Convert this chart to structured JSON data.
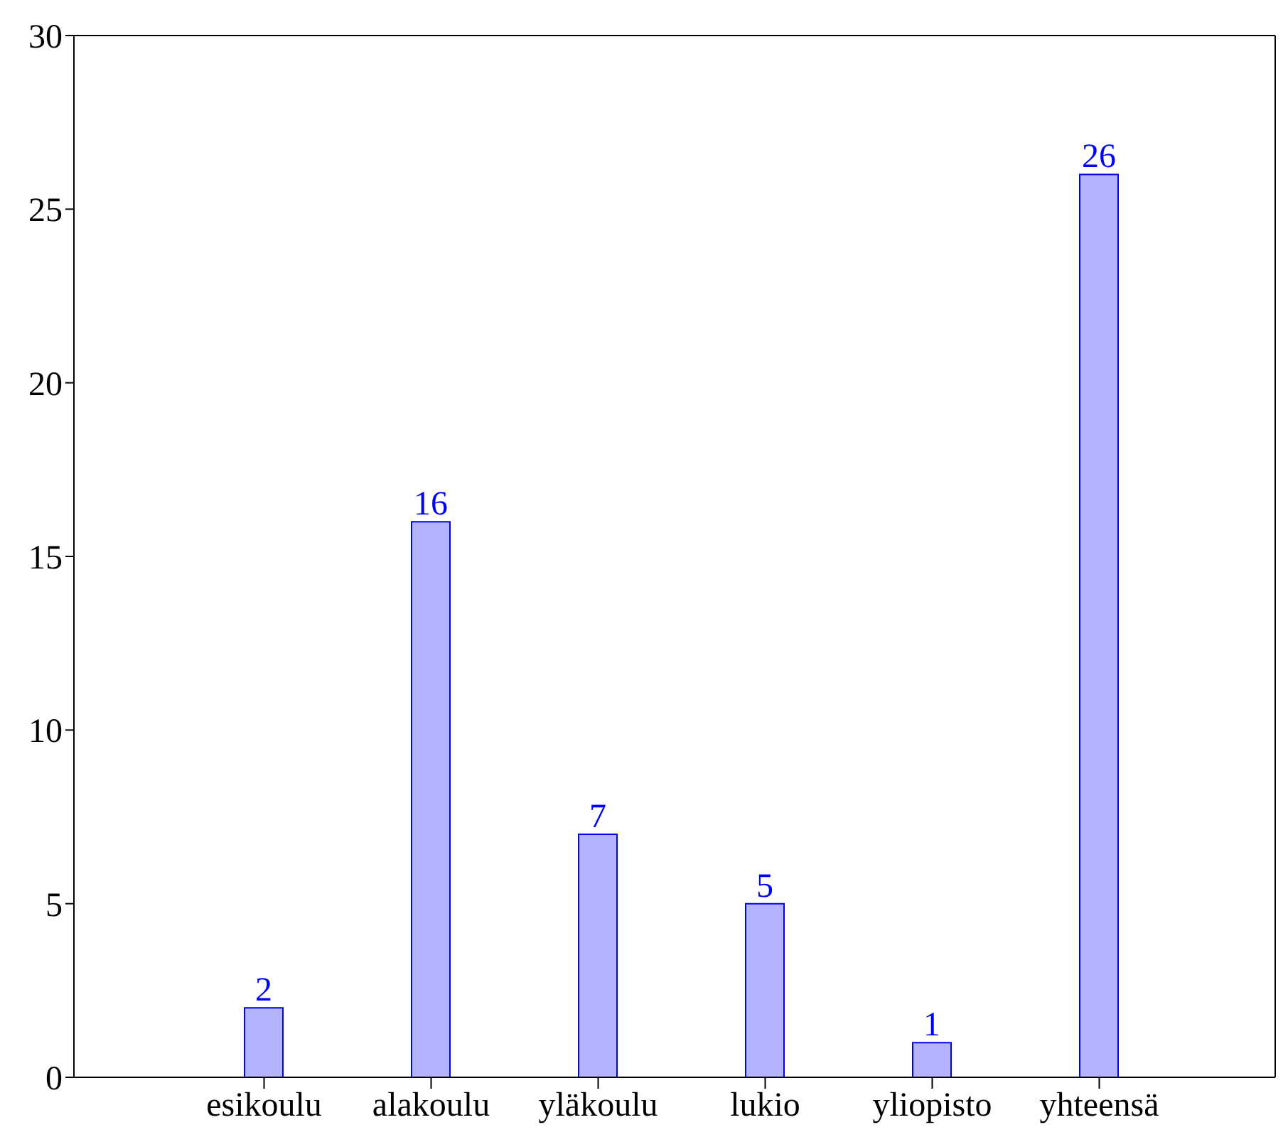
{
  "chart_data": {
    "type": "bar",
    "categories": [
      "esikoulu",
      "alakoulu",
      "yläkoulu",
      "lukio",
      "yliopisto",
      "yhteensä"
    ],
    "series": [
      {
        "color": "#b3b3ff",
        "values": [
          2,
          16,
          7,
          5,
          1,
          26
        ]
      }
    ],
    "ylim": [
      0,
      30
    ],
    "yticks": [
      0,
      5,
      10,
      15,
      20,
      25,
      30
    ],
    "data_labels": true,
    "grid": false,
    "legend": false
  }
}
